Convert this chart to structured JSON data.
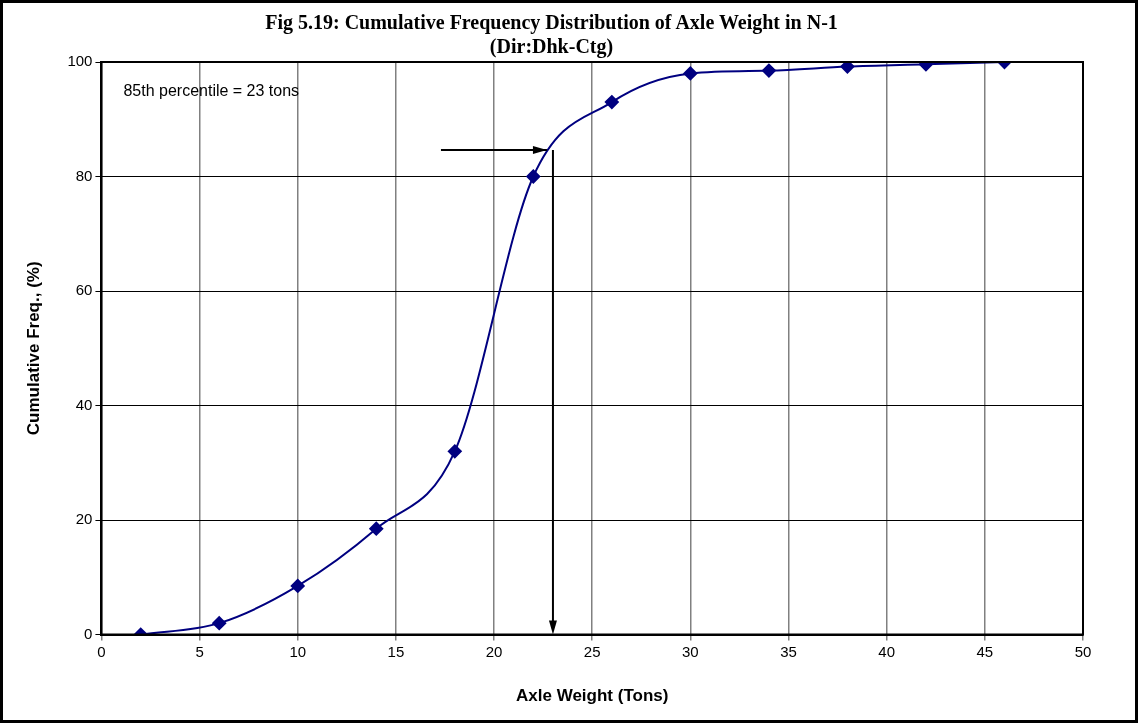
{
  "chart_data": {
    "type": "line",
    "title": "Fig 5.19: Cumulative Frequency Distribution of Axle Weight in N-1\n(Dir:Dhk-Ctg)",
    "xlabel": "Axle Weight (Tons)",
    "ylabel": "Cumulative Freq., (%)",
    "x": [
      2,
      6,
      10,
      14,
      18,
      22,
      26,
      30,
      34,
      38,
      42,
      46
    ],
    "series": [
      {
        "color": "#000080",
        "values": [
          0,
          2,
          8.5,
          18.5,
          32,
          80,
          93,
          98,
          98.5,
          99.2,
          99.6,
          100
        ]
      }
    ],
    "xlim": [
      0,
      50
    ],
    "xticks": [
      0,
      5,
      10,
      15,
      20,
      25,
      30,
      35,
      40,
      45,
      50
    ],
    "ylim": [
      0,
      100
    ],
    "yticks": [
      0,
      20,
      40,
      60,
      80,
      100
    ],
    "grid": true,
    "marker": "diamond",
    "line_style": "solid",
    "ref_lines": [
      {
        "axis": "x",
        "value": 23,
        "color": "#000000"
      }
    ],
    "annotations": [
      "85th percentile = 23 tons"
    ]
  }
}
